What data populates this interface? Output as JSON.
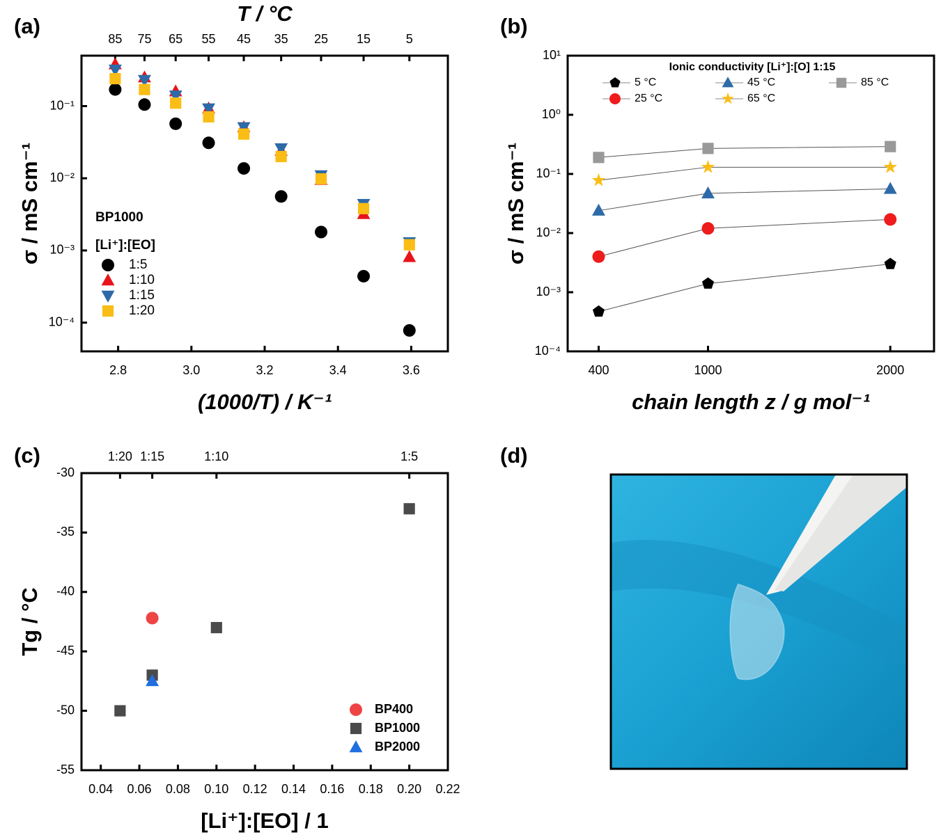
{
  "chart_data": [
    {
      "type": "scatter",
      "panel_label": "(a)",
      "xlabel": "(1000/T) / K⁻¹",
      "ylabel": "σ / mS cm⁻¹",
      "x2label": "T / °C",
      "log_y": true,
      "xlim": [
        2.7,
        3.7
      ],
      "ylim": [
        4e-05,
        0.5
      ],
      "xticks": [
        2.8,
        {
          "value": 3,
          "label": "3.0"
        },
        3.2,
        3.4,
        3.6
      ],
      "yticks": [
        {
          "value": 0.0001,
          "label": "10⁻⁴"
        },
        {
          "value": 0.001,
          "label": "10⁻³"
        },
        {
          "value": 0.01,
          "label": "10⁻²"
        },
        {
          "value": 0.1,
          "label": "10⁻¹"
        }
      ],
      "x2ticks": [
        {
          "value": 2.792,
          "label": "85"
        },
        {
          "value": 2.872,
          "label": "75"
        },
        {
          "value": 2.957,
          "label": "65"
        },
        {
          "value": 3.047,
          "label": "55"
        },
        {
          "value": 3.143,
          "label": "45"
        },
        {
          "value": 3.245,
          "label": "35"
        },
        {
          "value": 3.354,
          "label": "25"
        },
        {
          "value": 3.47,
          "label": "15"
        },
        {
          "value": 3.595,
          "label": "5"
        }
      ],
      "legend_title": [
        "BP1000",
        "[Li⁺]:[EO]"
      ],
      "series": [
        {
          "name": "1:5",
          "color": "#000000",
          "marker": "circle",
          "x": [
            2.792,
            2.872,
            2.957,
            3.047,
            3.143,
            3.245,
            3.354,
            3.47,
            3.595
          ],
          "values": [
            0.17,
            0.105,
            0.057,
            0.031,
            0.0137,
            0.0056,
            0.0018,
            0.00044,
            7.8e-05
          ]
        },
        {
          "name": "1:10",
          "color": "#e8141b",
          "marker": "triangle",
          "x": [
            2.792,
            2.872,
            2.957,
            3.047,
            3.143,
            3.245,
            3.354,
            3.47,
            3.595
          ],
          "values": [
            0.38,
            0.25,
            0.16,
            0.093,
            0.051,
            0.024,
            0.0095,
            0.0032,
            0.00081
          ]
        },
        {
          "name": "1:15",
          "color": "#2e6aa8",
          "marker": "triangle-down",
          "x": [
            2.792,
            2.872,
            2.957,
            3.047,
            3.143,
            3.245,
            3.354,
            3.47,
            3.595
          ],
          "values": [
            0.32,
            0.23,
            0.14,
            0.093,
            0.051,
            0.026,
            0.011,
            0.0044,
            0.0013
          ]
        },
        {
          "name": "1:20",
          "color": "#f9bd16",
          "marker": "square",
          "x": [
            2.792,
            2.872,
            2.957,
            3.047,
            3.143,
            3.245,
            3.354,
            3.47,
            3.595
          ],
          "values": [
            0.24,
            0.17,
            0.11,
            0.071,
            0.041,
            0.02,
            0.0098,
            0.0038,
            0.0012
          ]
        }
      ]
    },
    {
      "type": "scatter",
      "panel_label": "(b)",
      "xlabel": "chain length z / g mol⁻¹",
      "ylabel": "σ / mS cm⁻¹",
      "log_y": true,
      "lines": true,
      "xlim": [
        230,
        2240
      ],
      "ylim": [
        0.0001,
        10
      ],
      "xticks": [
        400,
        1000,
        2000
      ],
      "yticks": [
        {
          "value": 0.0001,
          "label": "10⁻⁴"
        },
        {
          "value": 0.001,
          "label": "10⁻³"
        },
        {
          "value": 0.01,
          "label": "10⁻²"
        },
        {
          "value": 0.1,
          "label": "10⁻¹"
        },
        {
          "value": 1,
          "label": "10⁰"
        },
        {
          "value": 10,
          "label": "10¹"
        }
      ],
      "legend_title": "Ionic conductivity  [Li⁺]:[O] 1:15",
      "series": [
        {
          "name": "5 °C",
          "color": "#000000",
          "marker": "pentagon",
          "x": [
            400,
            1000,
            2000
          ],
          "values": [
            0.00047,
            0.0014,
            0.003
          ]
        },
        {
          "name": "25 °C",
          "color": "#ee1c1c",
          "marker": "circle",
          "x": [
            400,
            1000,
            2000
          ],
          "values": [
            0.004,
            0.012,
            0.017
          ]
        },
        {
          "name": "45 °C",
          "color": "#2e6aa8",
          "marker": "triangle",
          "x": [
            400,
            1000,
            2000
          ],
          "values": [
            0.024,
            0.047,
            0.056
          ]
        },
        {
          "name": "65 °C",
          "color": "#f9bd16",
          "marker": "star",
          "x": [
            400,
            1000,
            2000
          ],
          "values": [
            0.078,
            0.13,
            0.13
          ]
        },
        {
          "name": "85 °C",
          "color": "#999999",
          "marker": "square",
          "x": [
            400,
            1000,
            2000
          ],
          "values": [
            0.19,
            0.27,
            0.29
          ]
        }
      ]
    },
    {
      "type": "scatter",
      "panel_label": "(c)",
      "xlabel": "[Li⁺]:[EO] / 1",
      "ylabel": "Tg / °C",
      "xlim": [
        0.03,
        0.22
      ],
      "ylim": [
        -55,
        -30
      ],
      "xticks": [
        0.04,
        0.06,
        0.08,
        {
          "value": 0.1,
          "label": "0.10"
        },
        0.12,
        0.14,
        0.16,
        0.18,
        {
          "value": 0.2,
          "label": "0.20"
        },
        0.22
      ],
      "yticks": [
        -55,
        -50,
        -45,
        -40,
        -35,
        -30
      ],
      "x2ticks": [
        {
          "value": 0.05,
          "label": "1:20"
        },
        {
          "value": 0.0667,
          "label": "1:15"
        },
        {
          "value": 0.1,
          "label": "1:10"
        },
        {
          "value": 0.2,
          "label": "1:5"
        }
      ],
      "series": [
        {
          "name": "BP400",
          "color": "#ee4444",
          "marker": "circle",
          "x": [
            0.0667
          ],
          "values": [
            -42.2
          ]
        },
        {
          "name": "BP1000",
          "color": "#4a4a4a",
          "marker": "square",
          "x": [
            0.05,
            0.0667,
            0.1,
            0.2
          ],
          "values": [
            -50,
            -47,
            -43,
            -33
          ]
        },
        {
          "name": "BP2000",
          "color": "#1f6fe0",
          "marker": "triangle",
          "x": [
            0.0667
          ],
          "values": [
            -47.5
          ]
        }
      ]
    }
  ],
  "photo": {
    "panel_label": "(d)"
  }
}
